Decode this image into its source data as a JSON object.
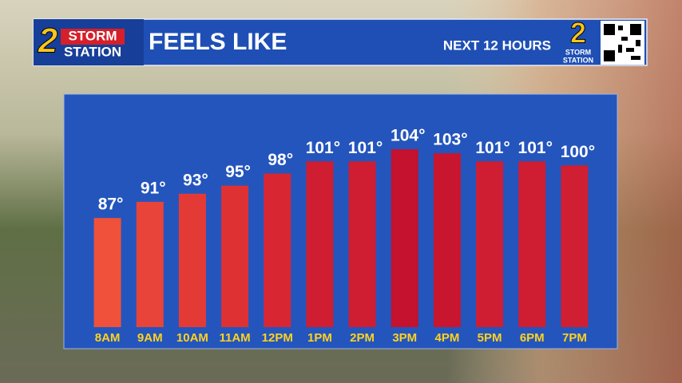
{
  "chart_data": {
    "type": "bar",
    "title": "FEELS LIKE",
    "subtitle": "NEXT 12 HOURS",
    "logo": {
      "number": "2",
      "line1": "STORM",
      "line2": "STATION"
    },
    "categories": [
      "8AM",
      "9AM",
      "10AM",
      "11AM",
      "12PM",
      "1PM",
      "2PM",
      "3PM",
      "4PM",
      "5PM",
      "6PM",
      "7PM"
    ],
    "values": [
      87,
      91,
      93,
      95,
      98,
      101,
      101,
      104,
      103,
      101,
      101,
      100
    ],
    "value_labels": [
      "87°",
      "91°",
      "93°",
      "95°",
      "98°",
      "101°",
      "101°",
      "104°",
      "103°",
      "101°",
      "101°",
      "100°"
    ],
    "colors": [
      "#ef513b",
      "#e8443a",
      "#e43a36",
      "#de3134",
      "#d82733",
      "#cf1d32",
      "#cf1d32",
      "#c4122f",
      "#c8162f",
      "#cf1d32",
      "#cf1d32",
      "#d01e32"
    ],
    "ylim": [
      60,
      105
    ]
  }
}
